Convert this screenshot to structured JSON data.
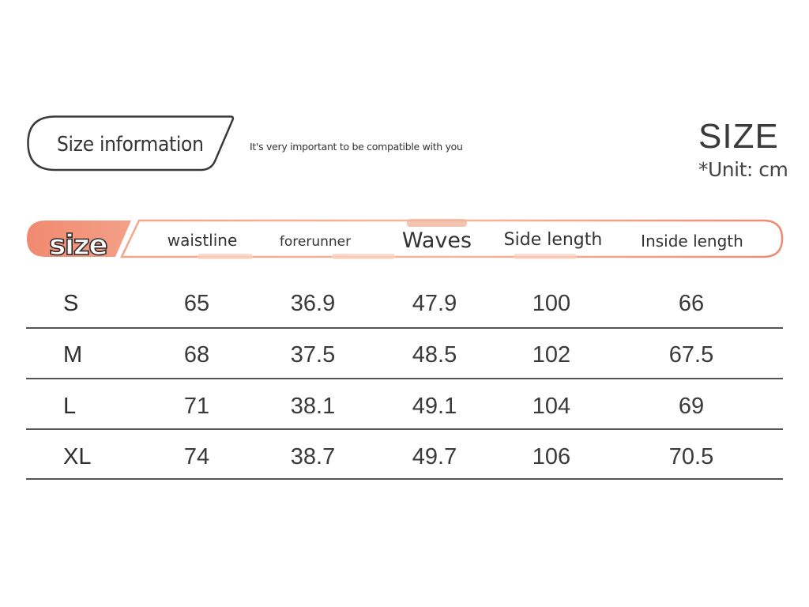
{
  "header": {
    "pill_label": "Size information",
    "tagline": "It's very important to be compatible with you",
    "title": "SIZE",
    "unit": "*Unit: cm"
  },
  "table": {
    "size_label": "size",
    "columns": [
      "waistline",
      "forerunner",
      "Waves",
      "Side length",
      "Inside length"
    ],
    "rows": [
      {
        "size": "S",
        "values": [
          "65",
          "36.9",
          "47.9",
          "100",
          "66"
        ]
      },
      {
        "size": "M",
        "values": [
          "68",
          "37.5",
          "48.5",
          "102",
          "67.5"
        ]
      },
      {
        "size": "L",
        "values": [
          "71",
          "38.1",
          "49.1",
          "104",
          "69"
        ]
      },
      {
        "size": "XL",
        "values": [
          "74",
          "38.7",
          "49.7",
          "106",
          "70.5"
        ]
      }
    ]
  },
  "colors": {
    "accent": "#f08a70",
    "accent_light": "#f9c7b5",
    "text": "#333333"
  }
}
